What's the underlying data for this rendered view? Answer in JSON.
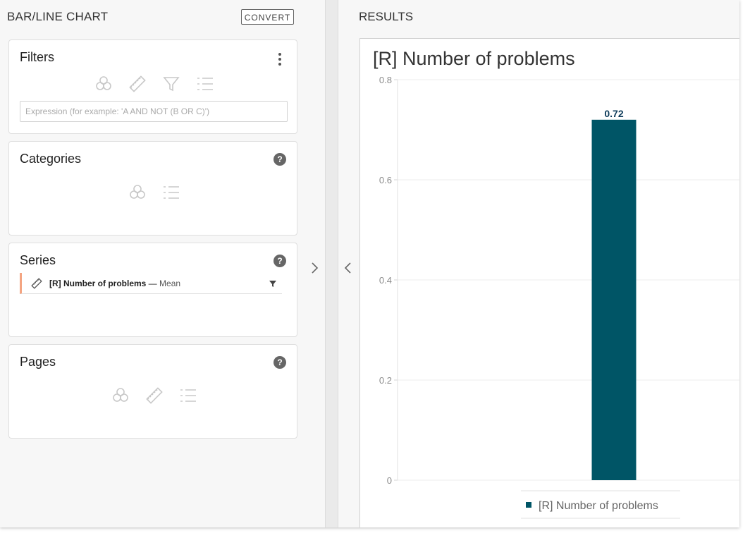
{
  "left_panel": {
    "title": "BAR/LINE CHART",
    "convert_label": "CONVERT"
  },
  "filters": {
    "title": "Filters",
    "expression_placeholder": "Expression (for example: 'A AND NOT (B OR C)')"
  },
  "categories": {
    "title": "Categories"
  },
  "series": {
    "title": "Series",
    "item_name": "[R] Number of problems",
    "item_separator": " —",
    "item_aggregate": "Mean"
  },
  "pages": {
    "title": "Pages"
  },
  "help_glyph": "?",
  "results": {
    "title": "RESULTS"
  },
  "colors": {
    "bar": "#005566",
    "series_marker": "#f4a582"
  },
  "chart_data": {
    "type": "bar",
    "title": "[R] Number of problems",
    "categories": [
      ""
    ],
    "series": [
      {
        "name": "[R] Number of problems",
        "values": [
          0.72
        ]
      }
    ],
    "data_labels": [
      "0.72"
    ],
    "yticks": [
      "0",
      "0.2",
      "0.4",
      "0.6",
      "0.8"
    ],
    "ylim": [
      0,
      0.8
    ],
    "grid": true,
    "legend_position": "bottom"
  }
}
